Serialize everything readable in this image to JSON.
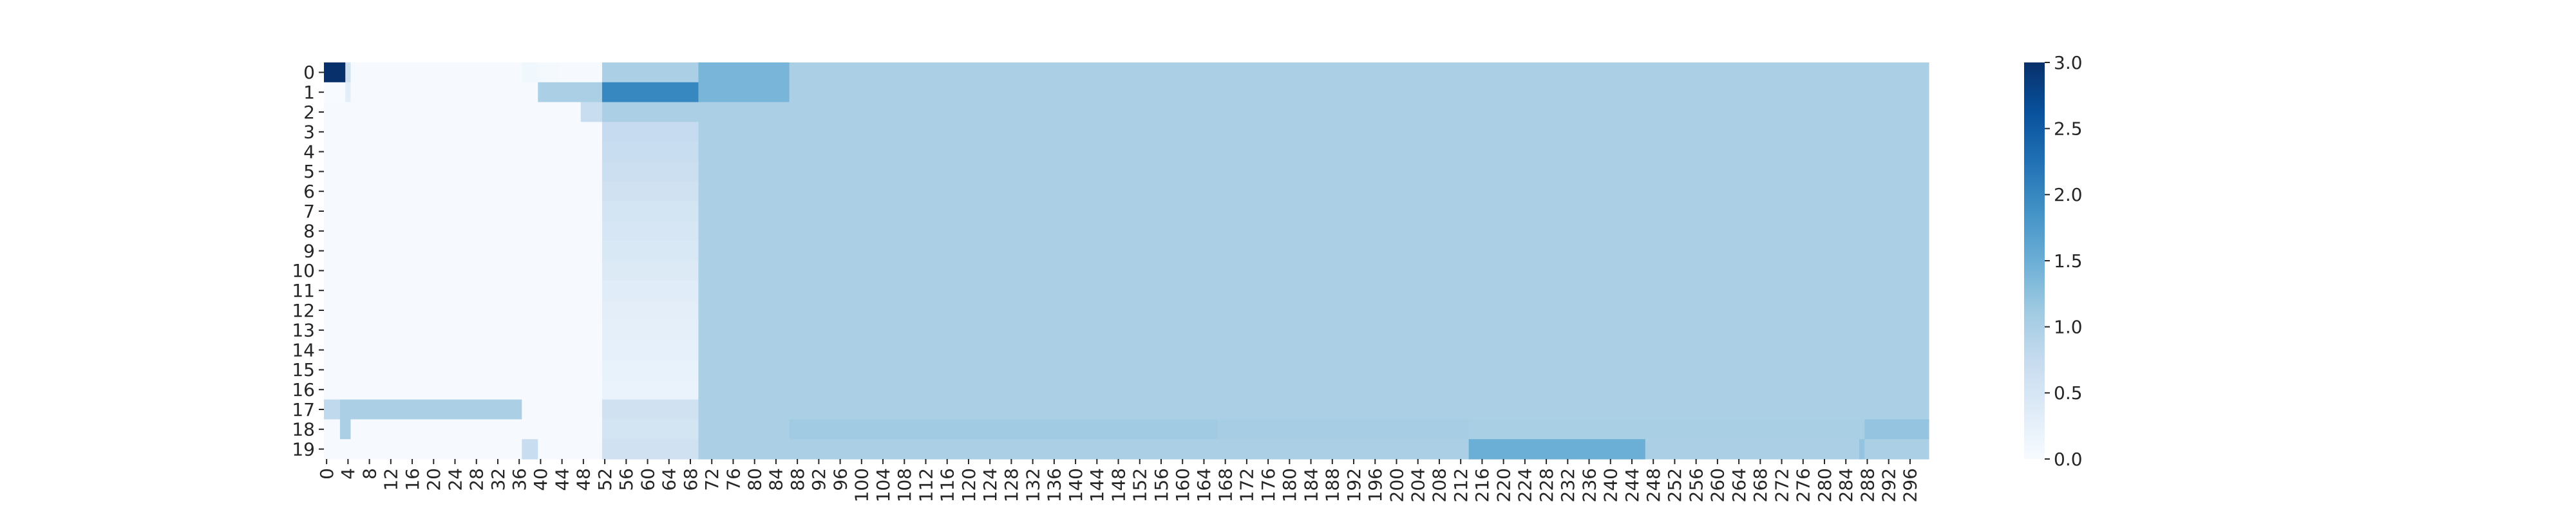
{
  "chart_data": {
    "type": "heatmap",
    "title": "",
    "xlabel": "",
    "ylabel": "",
    "n_cols": 300,
    "n_rows": 20,
    "x_tick_step": 4,
    "x_tick_labels": [
      "0",
      "4",
      "8",
      "12",
      "16",
      "20",
      "24",
      "28",
      "32",
      "36",
      "40",
      "44",
      "48",
      "52",
      "56",
      "60",
      "64",
      "68",
      "72",
      "76",
      "80",
      "84",
      "88",
      "92",
      "96",
      "100",
      "104",
      "108",
      "112",
      "116",
      "120",
      "124",
      "128",
      "132",
      "136",
      "140",
      "144",
      "148",
      "152",
      "156",
      "160",
      "164",
      "168",
      "172",
      "176",
      "180",
      "184",
      "188",
      "192",
      "196",
      "200",
      "204",
      "208",
      "212",
      "216",
      "220",
      "224",
      "228",
      "232",
      "236",
      "240",
      "244",
      "248",
      "252",
      "256",
      "260",
      "264",
      "268",
      "272",
      "276",
      "280",
      "284",
      "288",
      "292",
      "296"
    ],
    "y_tick_labels": [
      "0",
      "1",
      "2",
      "3",
      "4",
      "5",
      "6",
      "7",
      "8",
      "9",
      "10",
      "11",
      "12",
      "13",
      "14",
      "15",
      "16",
      "17",
      "18",
      "19"
    ],
    "colormap": "Blues",
    "value_range": [
      0,
      3.0
    ],
    "colorbar_ticks": [
      {
        "value": 0,
        "label": "0.0"
      },
      {
        "value": 0.5,
        "label": "0.5"
      },
      {
        "value": 1.0,
        "label": "1.0"
      },
      {
        "value": 1.5,
        "label": "1.5"
      },
      {
        "value": 2.0,
        "label": "2.0"
      },
      {
        "value": 2.5,
        "label": "2.5"
      },
      {
        "value": 3.0,
        "label": "3.0"
      }
    ],
    "background_value": 1.0,
    "note_on_cells": "Cell values are grouped as [row, col_start, col_end_exclusive, value] ranges; rows paint in order, later ranges override earlier ones.",
    "value_ranges": [
      [
        0,
        0,
        4,
        3.0
      ],
      [
        0,
        4,
        5,
        0.6
      ],
      [
        0,
        5,
        37,
        0.02
      ],
      [
        0,
        37,
        40,
        0.1
      ],
      [
        0,
        40,
        44,
        0.05
      ],
      [
        0,
        44,
        52,
        0.02
      ],
      [
        0,
        52,
        70,
        1.0
      ],
      [
        0,
        70,
        87,
        1.4
      ],
      [
        0,
        87,
        300,
        1.0
      ],
      [
        1,
        0,
        4,
        0.0
      ],
      [
        1,
        4,
        5,
        0.3
      ],
      [
        1,
        5,
        40,
        0.02
      ],
      [
        1,
        40,
        52,
        1.0
      ],
      [
        1,
        52,
        70,
        2.0
      ],
      [
        1,
        70,
        87,
        1.4
      ],
      [
        1,
        87,
        300,
        1.0
      ],
      [
        2,
        0,
        48,
        0.02
      ],
      [
        2,
        48,
        52,
        0.7
      ],
      [
        2,
        52,
        70,
        1.0
      ],
      [
        2,
        70,
        300,
        1.0
      ],
      [
        3,
        0,
        52,
        0.02
      ],
      [
        3,
        52,
        70,
        0.75
      ],
      [
        3,
        70,
        300,
        1.0
      ],
      [
        4,
        0,
        52,
        0.02
      ],
      [
        4,
        52,
        70,
        0.7
      ],
      [
        4,
        70,
        300,
        1.0
      ],
      [
        5,
        0,
        52,
        0.02
      ],
      [
        5,
        52,
        70,
        0.65
      ],
      [
        5,
        70,
        300,
        1.0
      ],
      [
        6,
        0,
        52,
        0.02
      ],
      [
        6,
        52,
        70,
        0.6
      ],
      [
        6,
        70,
        300,
        1.0
      ],
      [
        7,
        0,
        52,
        0.02
      ],
      [
        7,
        52,
        70,
        0.55
      ],
      [
        7,
        70,
        300,
        1.0
      ],
      [
        8,
        0,
        52,
        0.02
      ],
      [
        8,
        52,
        70,
        0.5
      ],
      [
        8,
        70,
        300,
        1.0
      ],
      [
        9,
        0,
        52,
        0.02
      ],
      [
        9,
        52,
        70,
        0.45
      ],
      [
        9,
        70,
        300,
        1.0
      ],
      [
        10,
        0,
        52,
        0.02
      ],
      [
        10,
        52,
        70,
        0.4
      ],
      [
        10,
        70,
        300,
        1.0
      ],
      [
        11,
        0,
        52,
        0.02
      ],
      [
        11,
        52,
        70,
        0.35
      ],
      [
        11,
        70,
        300,
        1.0
      ],
      [
        12,
        0,
        52,
        0.02
      ],
      [
        12,
        52,
        70,
        0.3
      ],
      [
        12,
        70,
        300,
        1.0
      ],
      [
        13,
        0,
        52,
        0.02
      ],
      [
        13,
        52,
        70,
        0.28
      ],
      [
        13,
        70,
        300,
        1.0
      ],
      [
        14,
        0,
        52,
        0.02
      ],
      [
        14,
        52,
        70,
        0.25
      ],
      [
        14,
        70,
        300,
        1.0
      ],
      [
        15,
        0,
        52,
        0.02
      ],
      [
        15,
        52,
        70,
        0.22
      ],
      [
        15,
        70,
        300,
        1.0
      ],
      [
        16,
        0,
        52,
        0.02
      ],
      [
        16,
        52,
        70,
        0.2
      ],
      [
        16,
        70,
        300,
        1.0
      ],
      [
        17,
        0,
        3,
        0.8
      ],
      [
        17,
        3,
        37,
        1.0
      ],
      [
        17,
        37,
        52,
        0.02
      ],
      [
        17,
        52,
        70,
        0.6
      ],
      [
        17,
        70,
        300,
        1.0
      ],
      [
        18,
        0,
        3,
        0.02
      ],
      [
        18,
        3,
        5,
        1.0
      ],
      [
        18,
        5,
        52,
        0.02
      ],
      [
        18,
        52,
        70,
        0.55
      ],
      [
        18,
        70,
        87,
        1.0
      ],
      [
        18,
        87,
        167,
        1.1
      ],
      [
        18,
        167,
        214,
        1.05
      ],
      [
        18,
        214,
        288,
        1.02
      ],
      [
        18,
        288,
        300,
        1.2
      ],
      [
        19,
        0,
        37,
        0.02
      ],
      [
        19,
        37,
        40,
        0.7
      ],
      [
        19,
        40,
        52,
        0.02
      ],
      [
        19,
        52,
        70,
        0.6
      ],
      [
        19,
        70,
        214,
        1.0
      ],
      [
        19,
        214,
        247,
        1.5
      ],
      [
        19,
        247,
        287,
        1.0
      ],
      [
        19,
        287,
        288,
        1.2
      ],
      [
        19,
        288,
        300,
        1.0
      ]
    ]
  }
}
